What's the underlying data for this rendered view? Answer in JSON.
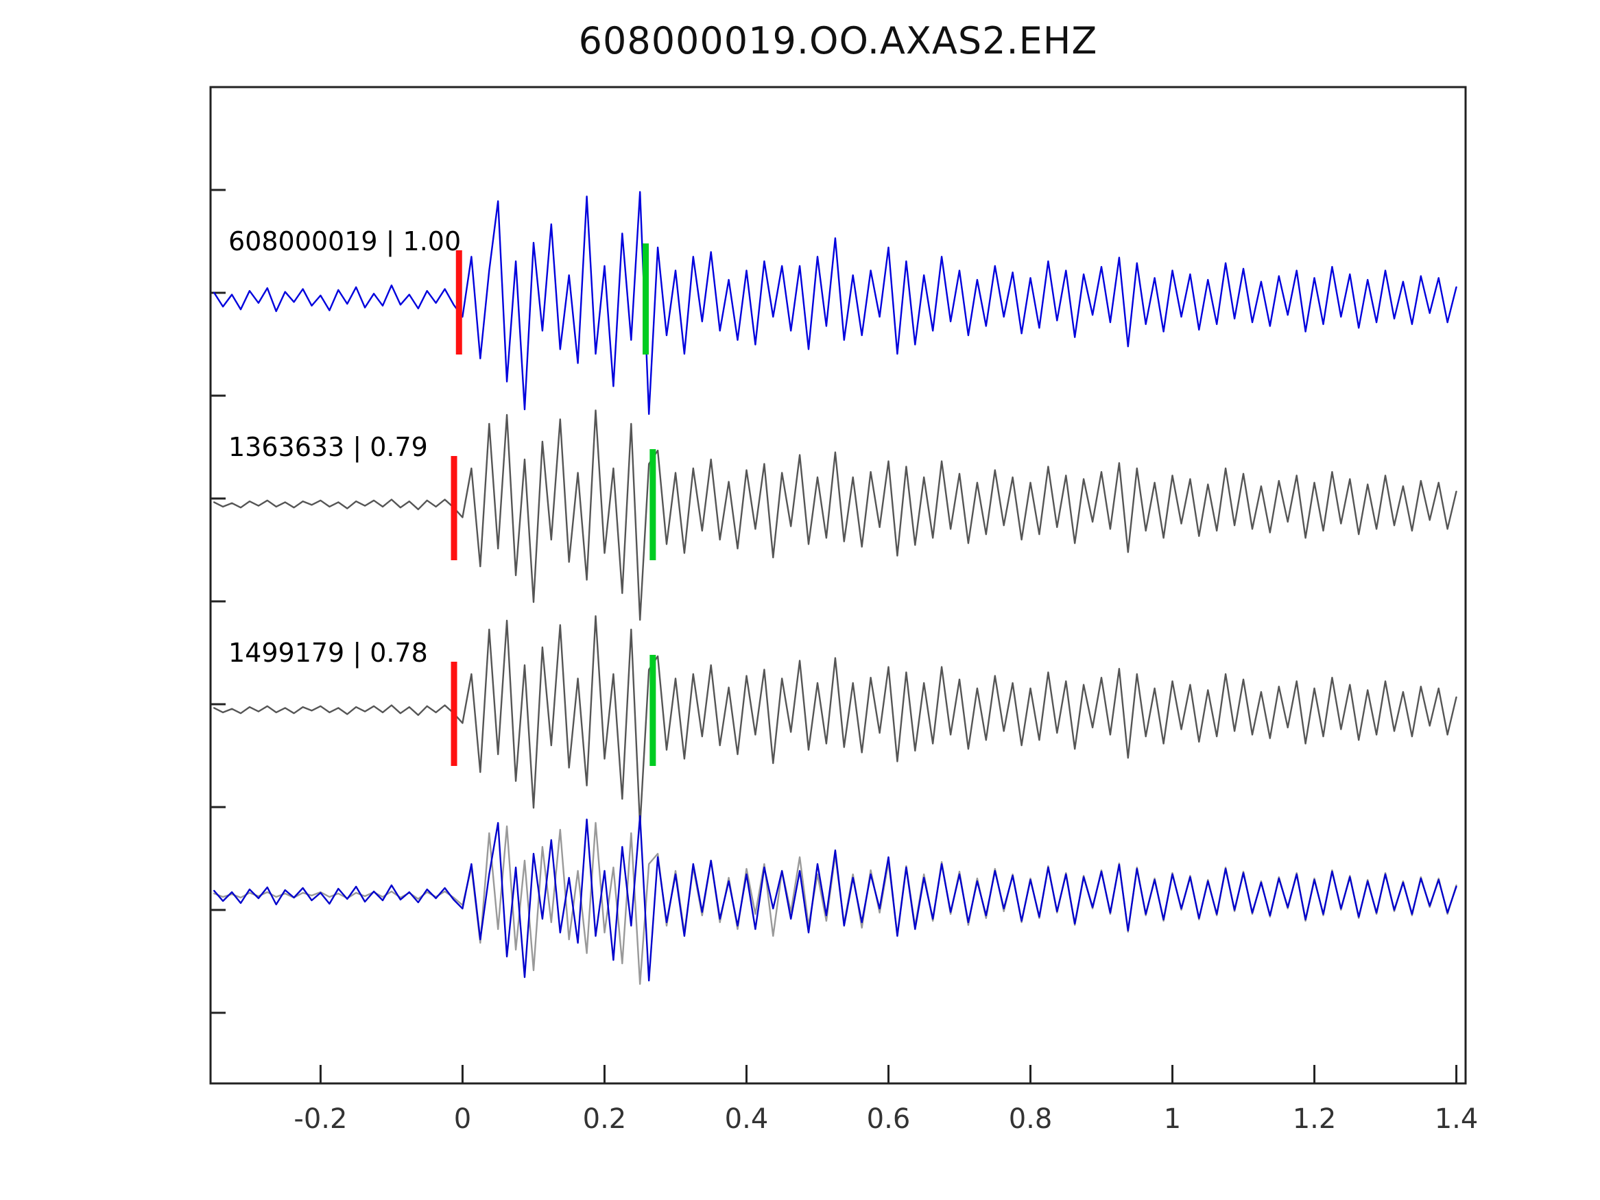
{
  "title": "608000019.OO.AXAS2.EHZ",
  "chart_data": {
    "type": "line",
    "title": "608000019.OO.AXAS2.EHZ",
    "xlabel": "",
    "ylabel": "",
    "xlim": [
      -0.355,
      1.413
    ],
    "x_ticks": [
      -0.2,
      0,
      0.2,
      0.4,
      0.6,
      0.8,
      1,
      1.2,
      1.4
    ],
    "x_tick_labels": [
      "-0.2",
      "0",
      "0.2",
      "0.4",
      "0.6",
      "0.8",
      "1",
      "1.2",
      "1.4"
    ],
    "grid": false,
    "legend": "none",
    "sample_t0": -0.35,
    "sample_dt": 0.0125,
    "colors": {
      "trace_blue": "#0000dd",
      "trace_gray": "#555555",
      "overlay_gray": "#999999",
      "overlay_blue": "#0000cc",
      "pick_red": "#ff1111",
      "pick_green": "#00cc22",
      "axis": "#222222",
      "tick_label": "#333333"
    },
    "waveforms": {
      "blue": [
        6,
        -9,
        4,
        -12,
        8,
        -5,
        11,
        -14,
        7,
        -4,
        10,
        -8,
        3,
        -13,
        9,
        -6,
        12,
        -10,
        5,
        -8,
        14,
        -7,
        4,
        -11,
        8,
        -5,
        10,
        -7,
        -20,
        45,
        -65,
        30,
        105,
        -90,
        40,
        -120,
        60,
        -35,
        80,
        -55,
        25,
        -70,
        110,
        -60,
        35,
        -95,
        70,
        -45,
        115,
        -125,
        55,
        -40,
        30,
        -60,
        45,
        -25,
        50,
        -35,
        20,
        -45,
        30,
        -50,
        40,
        -20,
        35,
        -35,
        35,
        -55,
        45,
        -30,
        65,
        -45,
        25,
        -40,
        30,
        -20,
        55,
        -60,
        40,
        -50,
        25,
        -35,
        45,
        -25,
        30,
        -40,
        20,
        -30,
        35,
        -20,
        28,
        -38,
        22,
        -32,
        40,
        -24,
        30,
        -42,
        26,
        -18,
        34,
        -26,
        44,
        -52,
        38,
        -28,
        22,
        -36,
        30,
        -20,
        26,
        -34,
        20,
        -28,
        38,
        -22,
        32,
        -26,
        18,
        -30,
        24,
        -18,
        30,
        -36,
        22,
        -28,
        34,
        -20,
        26,
        -32,
        20,
        -26,
        30,
        -22,
        18,
        -28,
        24,
        -16,
        22,
        -26,
        12
      ],
      "gray": [
        2,
        -3,
        1,
        -4,
        3,
        -2,
        4,
        -3,
        2,
        -4,
        3,
        -1,
        4,
        -3,
        2,
        -5,
        3,
        -2,
        4,
        -3,
        5,
        -4,
        3,
        -6,
        4,
        -3,
        5,
        -4,
        -15,
        40,
        -70,
        90,
        -50,
        100,
        -80,
        50,
        -110,
        70,
        -40,
        95,
        -65,
        35,
        -85,
        105,
        -55,
        40,
        -100,
        90,
        -130,
        45,
        60,
        -45,
        35,
        -55,
        40,
        -30,
        50,
        -40,
        25,
        -50,
        38,
        -28,
        45,
        -60,
        35,
        -25,
        55,
        -45,
        30,
        -38,
        58,
        -42,
        30,
        -48,
        36,
        -26,
        48,
        -58,
        42,
        -46,
        30,
        -38,
        48,
        -28,
        34,
        -44,
        24,
        -34,
        38,
        -24,
        30,
        -40,
        24,
        -34,
        42,
        -26,
        32,
        -44,
        28,
        -20,
        36,
        -28,
        46,
        -54,
        40,
        -30,
        24,
        -38,
        32,
        -22,
        28,
        -36,
        22,
        -30,
        40,
        -24,
        34,
        -28,
        20,
        -32,
        26,
        -20,
        32,
        -38,
        24,
        -30,
        36,
        -22,
        28,
        -34,
        22,
        -28,
        32,
        -24,
        20,
        -30,
        26,
        -18,
        24,
        -28,
        14
      ]
    },
    "traces": [
      {
        "label": "608000019 | 1.00",
        "samples_key": "blue",
        "color_key": "trace_blue",
        "pick_red": -0.005,
        "pick_green": 0.258
      },
      {
        "label": "1363633 | 0.79",
        "samples_key": "gray",
        "color_key": "trace_gray",
        "pick_red": -0.012,
        "pick_green": 0.268
      },
      {
        "label": "1499179 | 0.78",
        "samples_key": "gray",
        "color_key": "trace_gray",
        "pick_red": -0.012,
        "pick_green": 0.268
      },
      {
        "label": "",
        "overlay": [
          {
            "samples_key": "gray",
            "color_key": "overlay_gray"
          },
          {
            "samples_key": "blue",
            "color_key": "overlay_blue"
          }
        ]
      }
    ]
  }
}
